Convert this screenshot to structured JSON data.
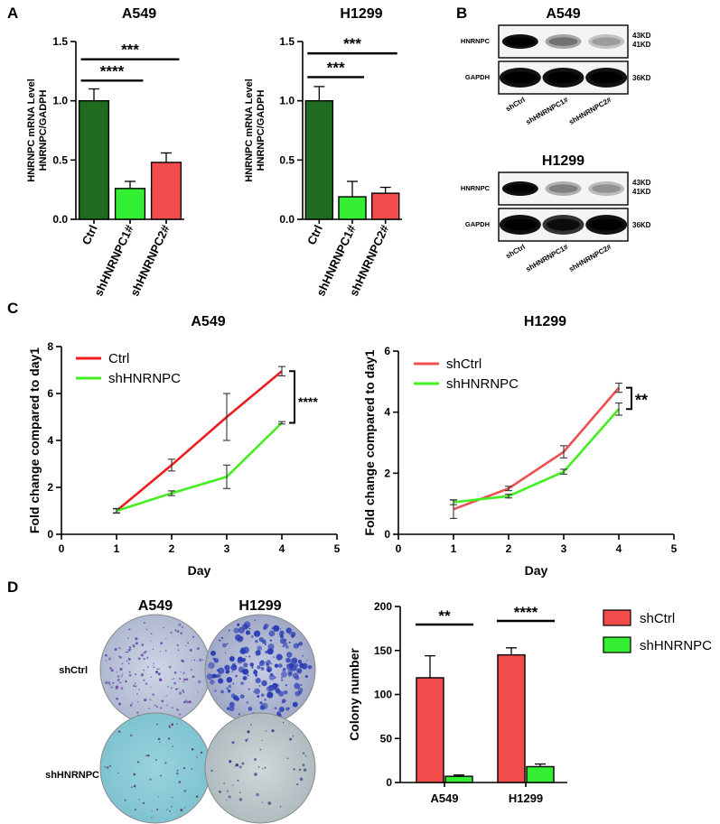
{
  "panels": {
    "A": "A",
    "B": "B",
    "C": "C",
    "D": "D"
  },
  "colors": {
    "ctrl_dark_green": "#1f6b1f",
    "bright_green": "#33ee33",
    "red": "#f24b4b",
    "line_red": "#ee1c1c",
    "line_red_soft": "#ee5050",
    "line_green": "#44ee22",
    "blot_bg": "#f4f4f4",
    "plate_blue": "#8ccbd8"
  },
  "chart_data": [
    {
      "id": "a_a549",
      "type": "bar",
      "title": "A549",
      "ylabel_lines": [
        "HNRNPC mRNA Level",
        "HNRNPC/GADPH"
      ],
      "categories": [
        "Ctrl",
        "shHNRNPC1#",
        "shHNRNPC2#"
      ],
      "values": [
        1.0,
        0.26,
        0.48
      ],
      "errors": [
        0.1,
        0.06,
        0.08
      ],
      "ylim": [
        0,
        1.5
      ],
      "yticks": [
        "0.0",
        "0.5",
        "1.0",
        "1.5"
      ],
      "significance": [
        {
          "from": 0,
          "to": 1,
          "label": "****",
          "y": 1.17
        },
        {
          "from": 0,
          "to": 2,
          "label": "***",
          "y": 1.35
        }
      ]
    },
    {
      "id": "a_h1299",
      "type": "bar",
      "title": "H1299",
      "ylabel_lines": [
        "HNRNPC mRNA Level",
        "HNRNPC/GADPH"
      ],
      "categories": [
        "Ctrl",
        "shHNRNPC1#",
        "shHNRNPC2#"
      ],
      "values": [
        1.0,
        0.19,
        0.22
      ],
      "errors": [
        0.12,
        0.13,
        0.05
      ],
      "ylim": [
        0,
        1.5
      ],
      "yticks": [
        "0.0",
        "0.5",
        "1.0",
        "1.5"
      ],
      "significance": [
        {
          "from": 0,
          "to": 1,
          "label": "***",
          "y": 1.2
        },
        {
          "from": 0,
          "to": 2,
          "label": "***",
          "y": 1.4
        }
      ]
    },
    {
      "id": "c_a549",
      "type": "line",
      "title": "A549",
      "xlabel": "Day",
      "ylabel": "Fold change compared to day1",
      "x": [
        1,
        2,
        3,
        4
      ],
      "xlim": [
        0,
        5
      ],
      "ylim": [
        0,
        8
      ],
      "xticks": [
        "0",
        "1",
        "2",
        "3",
        "4",
        "5"
      ],
      "yticks": [
        "0",
        "2",
        "4",
        "6",
        "8"
      ],
      "series": [
        {
          "name": "Ctrl",
          "values": [
            1.0,
            2.95,
            5.0,
            6.95
          ],
          "errors": [
            0.1,
            0.25,
            1.0,
            0.2
          ]
        },
        {
          "name": "shHNRNPC",
          "values": [
            1.0,
            1.75,
            2.45,
            4.75
          ],
          "errors": [
            0.08,
            0.1,
            0.5,
            0.05
          ]
        }
      ],
      "significance": {
        "label": "****"
      }
    },
    {
      "id": "c_h1299",
      "type": "line",
      "title": "H1299",
      "xlabel": "Day",
      "ylabel": "Fold change compared to day1",
      "x": [
        1,
        2,
        3,
        4
      ],
      "xlim": [
        0,
        5
      ],
      "ylim": [
        0,
        6
      ],
      "xticks": [
        "0",
        "1",
        "2",
        "3",
        "4",
        "5"
      ],
      "yticks": [
        "0",
        "2",
        "4",
        "6"
      ],
      "series": [
        {
          "name": "shCtrl",
          "values": [
            0.82,
            1.5,
            2.7,
            4.8
          ],
          "errors": [
            0.3,
            0.07,
            0.2,
            0.15
          ]
        },
        {
          "name": "shHNRNPC",
          "values": [
            1.05,
            1.25,
            2.05,
            4.1
          ],
          "errors": [
            0.08,
            0.06,
            0.08,
            0.2
          ]
        }
      ],
      "significance": {
        "label": "**"
      }
    },
    {
      "id": "d_colony",
      "type": "bar",
      "ylabel": "Colony number",
      "categories": [
        "A549",
        "H1299"
      ],
      "series": [
        {
          "name": "shCtrl",
          "values": [
            119,
            145
          ],
          "errors": [
            25,
            8
          ]
        },
        {
          "name": "shHNRNPC",
          "values": [
            7,
            18
          ],
          "errors": [
            1.5,
            3
          ]
        }
      ],
      "ylim": [
        0,
        200
      ],
      "yticks": [
        "0",
        "50",
        "100",
        "150",
        "200"
      ],
      "significance": [
        {
          "group": 0,
          "label": "**"
        },
        {
          "group": 1,
          "label": "****"
        }
      ]
    }
  ],
  "western": {
    "blots": [
      {
        "title": "A549",
        "target": "HNRNPC",
        "loading": "GAPDH",
        "sizes_target": [
          "43KD",
          "41KD"
        ],
        "size_loading": "36KD",
        "lanes": [
          "shCtrl",
          "shHNRNPC1#",
          "shHNRNPC2#"
        ],
        "target_intensity": [
          1.0,
          0.35,
          0.22
        ],
        "loading_intensity": [
          1.0,
          1.0,
          1.0
        ]
      },
      {
        "title": "H1299",
        "target": "HNRNPC",
        "loading": "GAPDH",
        "sizes_target": [
          "43KD",
          "41KD"
        ],
        "size_loading": "36KD",
        "lanes": [
          "shCtrl",
          "shHNRNPC1#",
          "shHNRNPC2#"
        ],
        "target_intensity": [
          1.0,
          0.3,
          0.25
        ],
        "loading_intensity": [
          1.0,
          0.85,
          1.0
        ]
      }
    ]
  },
  "colony_plates": {
    "columns": [
      "A549",
      "H1299"
    ],
    "rows": [
      "shCtrl",
      "shHNRNPC"
    ]
  }
}
